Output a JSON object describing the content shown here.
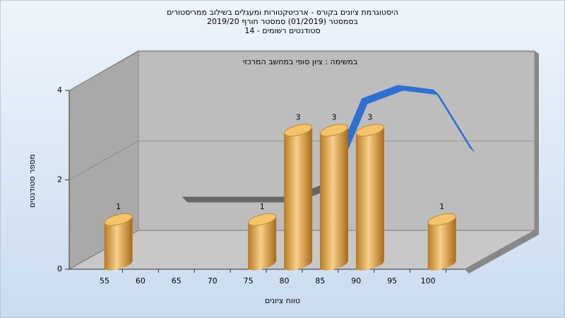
{
  "chart_data": {
    "type": "bar3d",
    "title": "היסטוגרמת ציונים בקורס - ארכיטקטורות ומעגלים בשילוב ממריסטורים",
    "subtitle": "בסמסטר  (01/2019)  סמסטר חורף 2019/20",
    "subtitle2": "סטודנטים רשומים - 14",
    "annotation": "במשימה : ציון סופי במחשב המרכזי",
    "x_label": "טווח ציונים",
    "y_label": "מספר סטודנטים",
    "categories": [
      "55",
      "60",
      "65",
      "70",
      "75",
      "80",
      "85",
      "90",
      "95",
      "100"
    ],
    "series": [
      {
        "values": [
          1,
          0,
          0,
          0,
          1,
          3,
          3,
          3,
          0,
          1
        ],
        "color": "#e0a040"
      },
      {
        "type": "ribbon",
        "values": [
          null,
          1.1,
          1.1,
          1.1,
          1.1,
          1.4,
          3.3,
          3.6,
          3.5,
          2.2
        ],
        "color": "#666666",
        "color2": "#2f6fd0"
      }
    ],
    "ylim": [
      0,
      4
    ],
    "yticks": [
      0,
      2,
      4
    ],
    "grid": true
  }
}
